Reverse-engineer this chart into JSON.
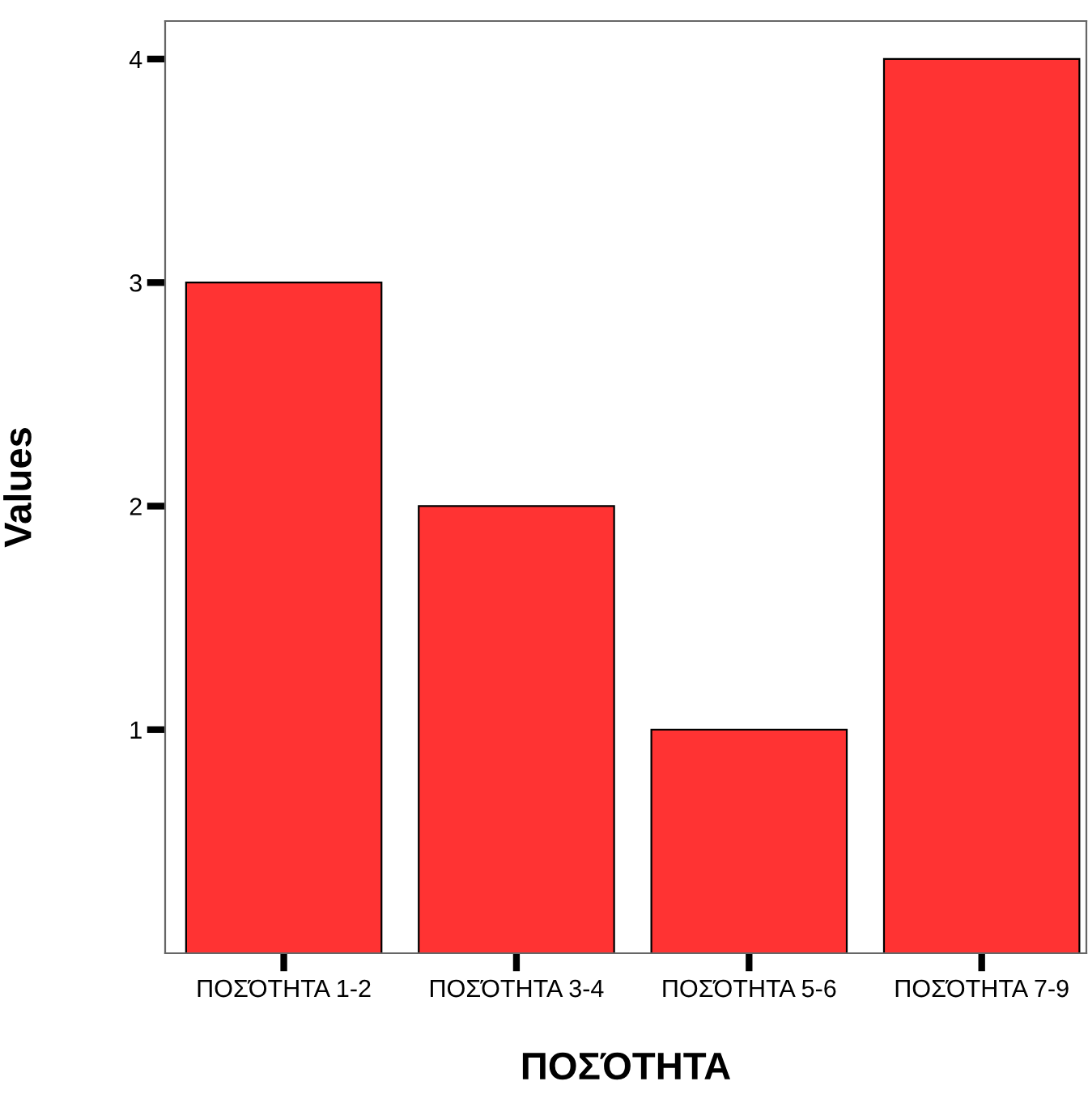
{
  "chart_data": {
    "type": "bar",
    "xlabel": "ΠΟΣΌΤΗΤΑ",
    "ylabel": "Values",
    "categories": [
      "ΠΟΣΌΤΗΤΑ 1-2",
      "ΠΟΣΌΤΗΤΑ 3-4",
      "ΠΟΣΌΤΗΤΑ 5-6",
      "ΠΟΣΌΤΗΤΑ 7-9"
    ],
    "values": [
      3,
      2,
      1,
      4
    ],
    "color": "#ff3333",
    "ylim": [
      0,
      4.17
    ],
    "yticks": [
      1,
      2,
      3,
      4
    ],
    "grid": false,
    "legend": false
  }
}
